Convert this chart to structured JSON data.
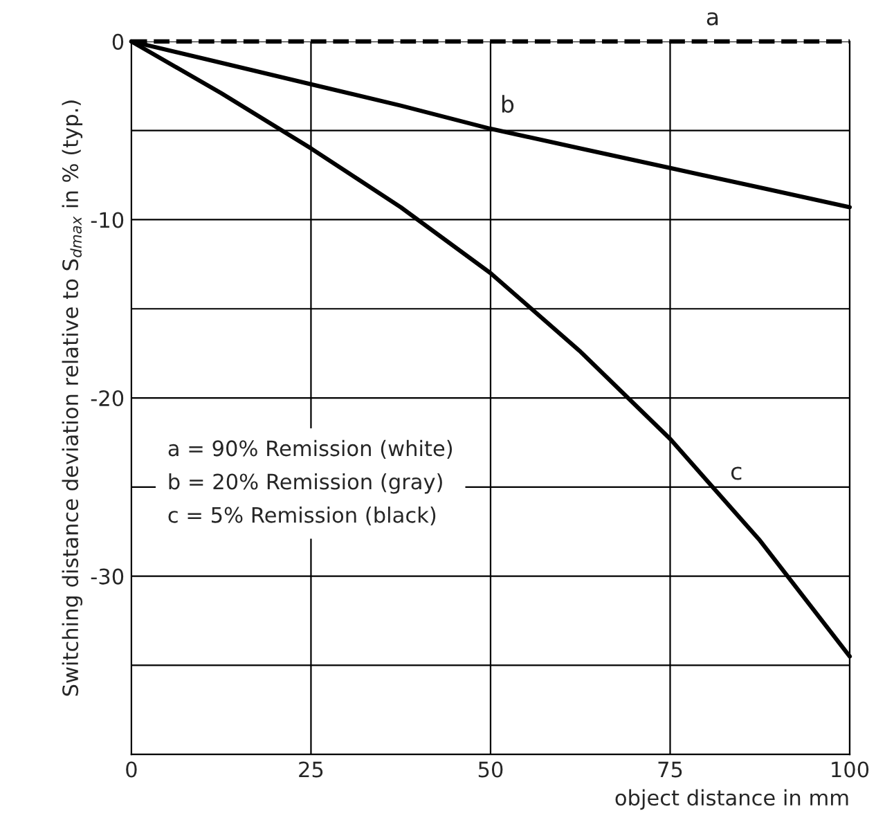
{
  "chart_data": {
    "type": "line",
    "xlabel": "object distance in mm",
    "ylabel": "Switching distance deviation relative to S$_{dmax}$ in % (typ.)",
    "x": [
      0,
      12.5,
      25,
      37.5,
      50,
      62.5,
      75,
      87.5,
      100
    ],
    "series": [
      {
        "color": "#000000",
        "line_style": "dashed",
        "values": [
          0,
          0,
          0,
          0,
          0,
          0,
          0,
          0,
          0
        ]
      },
      {
        "color": "#000000",
        "line_style": "solid",
        "values": [
          0,
          -1.2,
          -2.4,
          -3.6,
          -4.9,
          -6.0,
          -7.1,
          -8.2,
          -9.3
        ]
      },
      {
        "color": "#000000",
        "line_style": "solid",
        "values": [
          0,
          -2.9,
          -6.0,
          -9.3,
          -13.0,
          -17.4,
          -22.3,
          -28.0,
          -34.5
        ]
      }
    ],
    "xlim": [
      0,
      100
    ],
    "xticks": [
      0,
      25,
      50,
      75,
      100
    ],
    "ylim": [
      -40,
      0
    ],
    "yticks": [
      0,
      {
        "value": -5,
        "label": null
      },
      -10,
      {
        "value": -15,
        "label": null
      },
      -20,
      {
        "value": -25,
        "label": null
      },
      -30,
      {
        "value": -35,
        "label": null
      }
    ],
    "grid": true,
    "annotations": [
      {
        "text": "a",
        "x": 78.6,
        "y": 0
      },
      {
        "text": "b",
        "x": 50,
        "y": -4.9
      },
      {
        "text": "c",
        "x": 82,
        "y": -25.5
      },
      "a = 90% Remission (white)\nb = 20% Remission (gray)\nc = 5% Remission (black)"
    ]
  }
}
